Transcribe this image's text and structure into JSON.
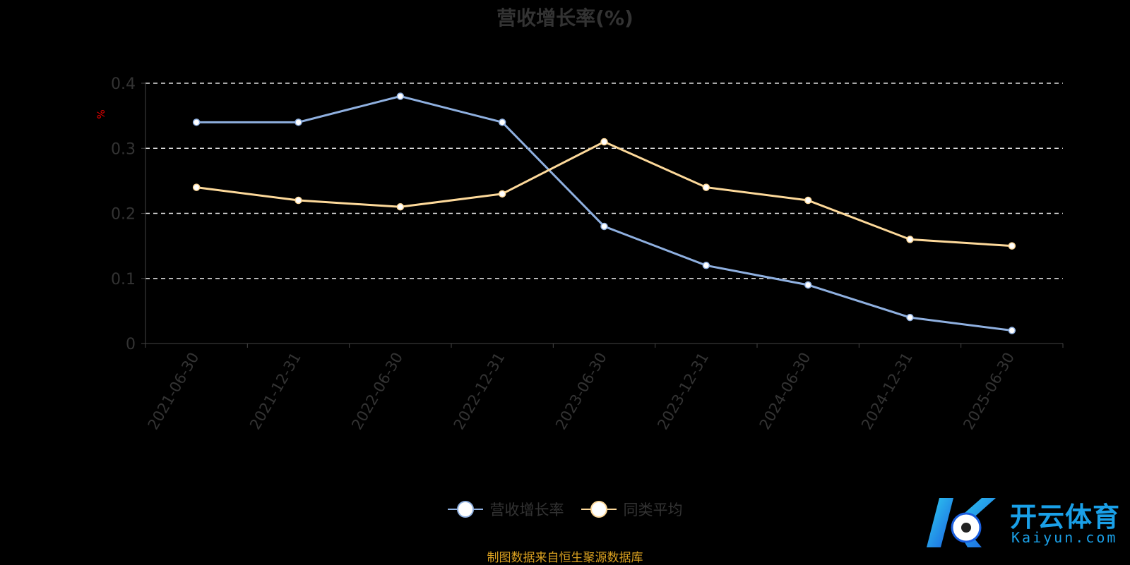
{
  "chart_data": {
    "type": "line",
    "title": "营收增长率(%)",
    "ylabel": "%",
    "categories": [
      "2021-06-30",
      "2021-12-31",
      "2022-06-30",
      "2022-12-31",
      "2023-06-30",
      "2023-12-31",
      "2024-06-30",
      "2024-12-31",
      "2025-06-30"
    ],
    "series": [
      {
        "name": "营收增长率",
        "color": "#8fb0e0",
        "values": [
          0.34,
          0.34,
          0.38,
          0.34,
          0.18,
          0.12,
          0.09,
          0.04,
          0.02
        ]
      },
      {
        "name": "同类平均",
        "color": "#fdd99a",
        "values": [
          0.24,
          0.22,
          0.21,
          0.23,
          0.31,
          0.24,
          0.22,
          0.16,
          0.15
        ]
      }
    ],
    "ylim": [
      0,
      0.4
    ],
    "yticks": [
      "0",
      "0.1",
      "0.2",
      "0.3",
      "0.4"
    ],
    "grid": true,
    "legend_position": "bottom"
  },
  "source": "制图数据来自恒生聚源数据库",
  "watermark": {
    "cn": "开云体育",
    "en": "Kaiyun.com"
  }
}
